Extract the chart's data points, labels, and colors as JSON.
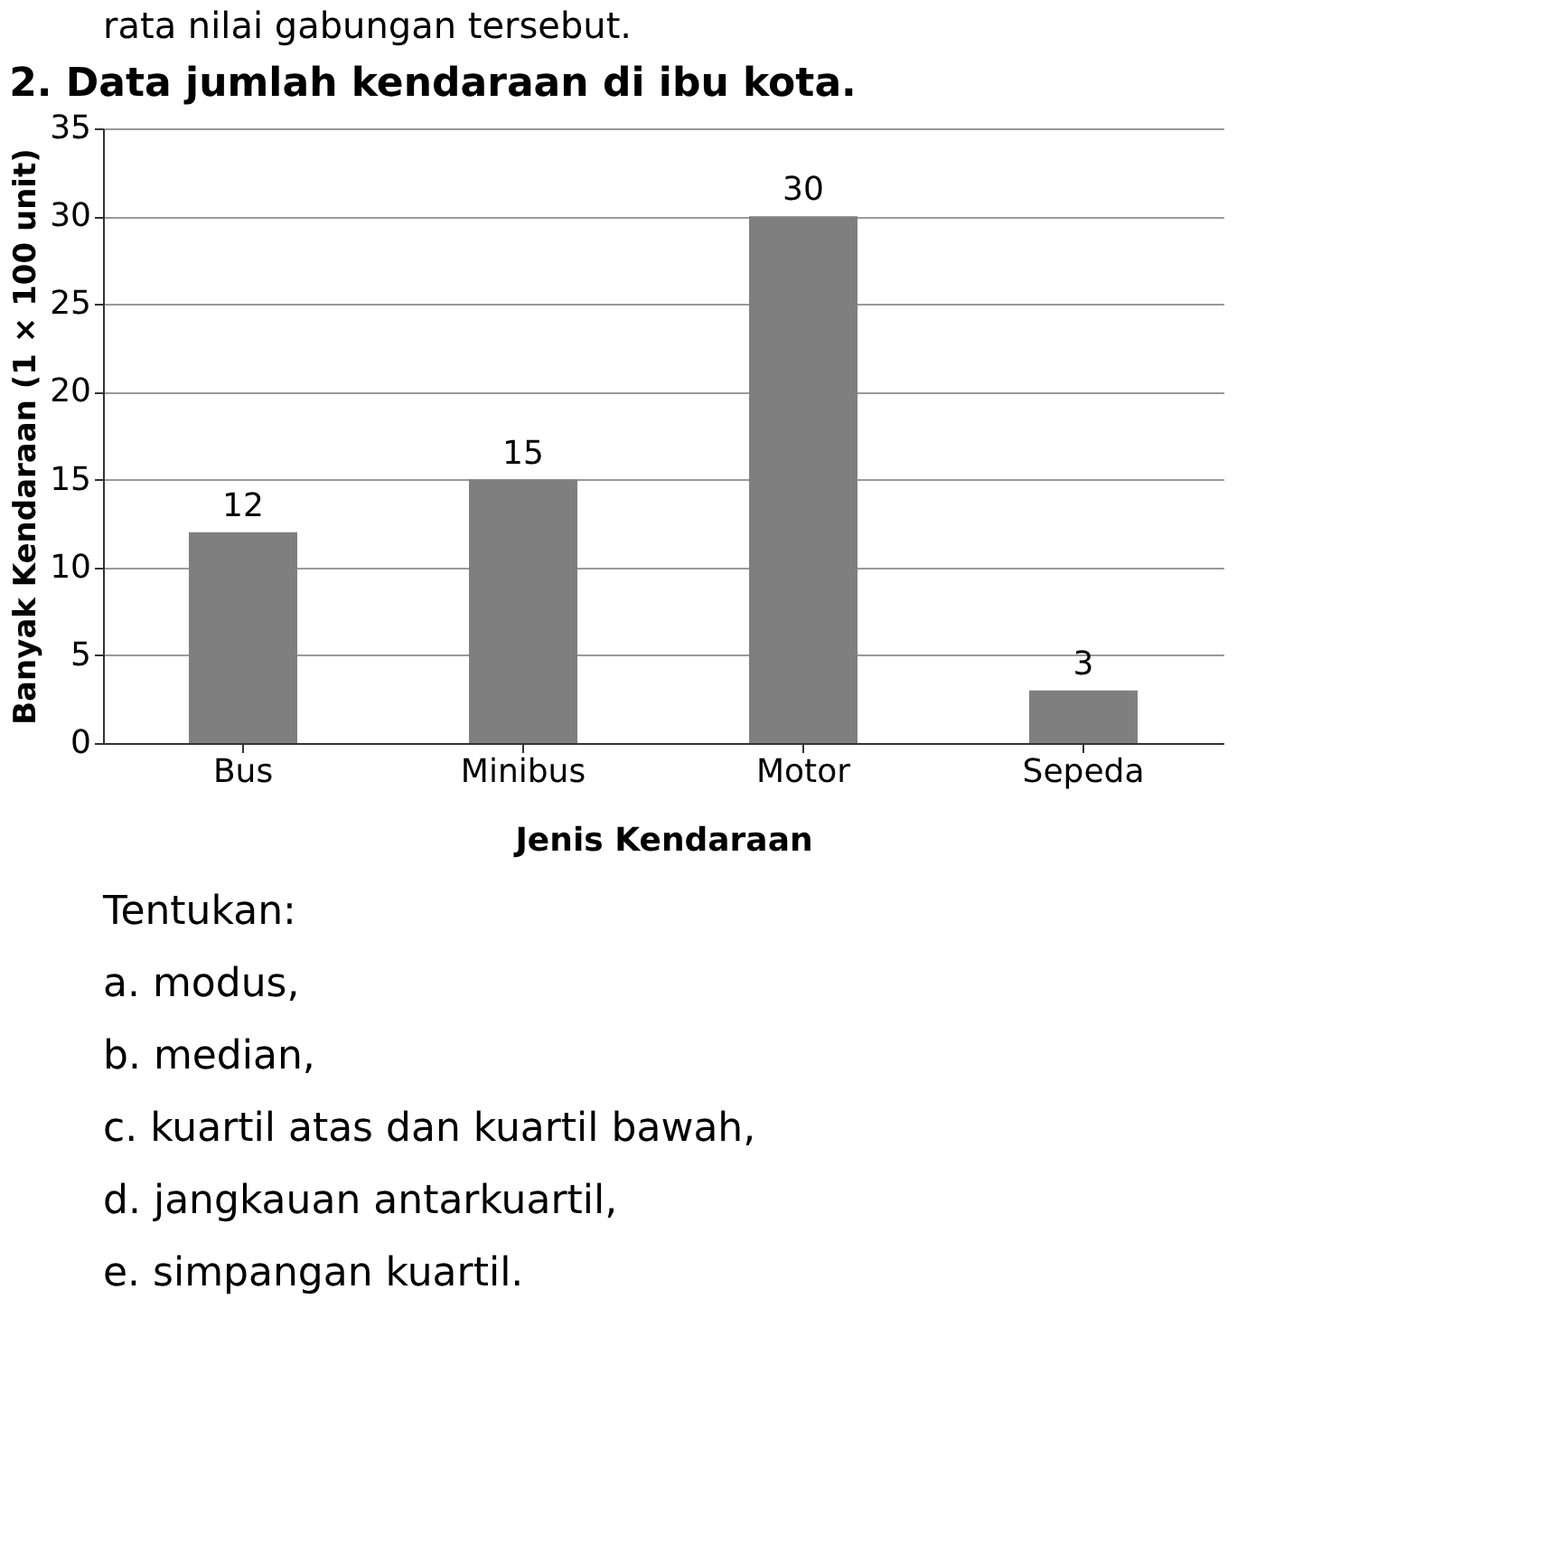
{
  "chart_data": {
    "type": "bar",
    "title": "2. Data jumlah kendaraan di ibu kota.",
    "xlabel": "Jenis Kendaraan",
    "ylabel": "Banyak Kendaraan (1 × 100 unit)",
    "categories": [
      "Bus",
      "Minibus",
      "Motor",
      "Sepeda"
    ],
    "values": [
      12,
      15,
      30,
      3
    ],
    "color": "#7f7f7f",
    "data_labels": true,
    "ylim": [
      0,
      35
    ],
    "yticks": [
      0,
      5,
      10,
      15,
      20,
      25,
      30,
      35
    ],
    "grid": "y",
    "annotations": [
      "rata nilai gabungan tersebut.",
      "Tentukan:",
      "a. modus,",
      "b. median,",
      "c. kuartil atas dan kuartil bawah,",
      "d. jangkauan antarkuartil,",
      "e. simpangan kuartil."
    ]
  }
}
